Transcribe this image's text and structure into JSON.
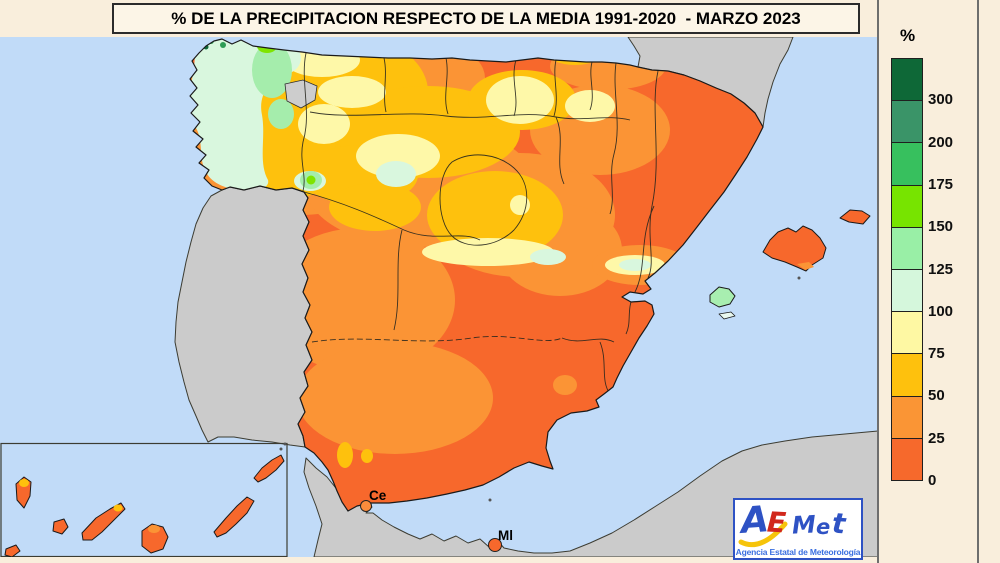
{
  "title": "% DE LA PRECIPITACION RESPECTO DE LA MEDIA 1991-2020  - MARZO 2023",
  "legend": {
    "unit": "%",
    "scale": [
      {
        "label": "300",
        "color": "#0E6837"
      },
      {
        "label": "200",
        "color": "#3A9468"
      },
      {
        "label": "175",
        "color": "#37C05E"
      },
      {
        "label": "150",
        "color": "#77E400"
      },
      {
        "label": "125",
        "color": "#99EFA6"
      },
      {
        "label": "100",
        "color": "#D5F7DC"
      },
      {
        "label": "75",
        "color": "#FEF8A3"
      },
      {
        "label": "50",
        "color": "#FEC10D"
      },
      {
        "label": "25",
        "color": "#FA9535"
      },
      {
        "label": "0",
        "color": "#F6692C"
      }
    ]
  },
  "map": {
    "city_labels": [
      {
        "id": "ceuta",
        "text": "Ce"
      },
      {
        "id": "melilla",
        "text": "Ml"
      }
    ],
    "colors": {
      "sea": "#C1DBF8",
      "no_data_land": "#CBCBCB",
      "precip_base_low": "#F7682C"
    }
  },
  "logo": {
    "letters": [
      "A",
      "E",
      "M",
      "e",
      "t"
    ],
    "subtitle": "Agencia Estatal de Meteorología"
  }
}
